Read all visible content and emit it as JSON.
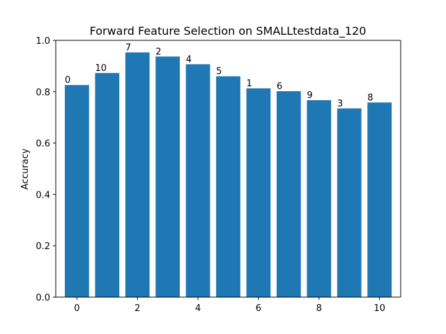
{
  "chart_data": {
    "type": "bar",
    "title": "Forward Feature Selection on SMALLtestdata_120",
    "xlabel": "",
    "ylabel": "Accuracy",
    "x": [
      0,
      1,
      2,
      3,
      4,
      5,
      6,
      7,
      8,
      9,
      10
    ],
    "values": [
      0.826,
      0.873,
      0.953,
      0.937,
      0.907,
      0.86,
      0.813,
      0.802,
      0.767,
      0.735,
      0.758
    ],
    "bar_labels": [
      "0",
      "10",
      "7",
      "2",
      "4",
      "5",
      "1",
      "6",
      "9",
      "3",
      "8"
    ],
    "xlim": [
      -0.7,
      10.7
    ],
    "ylim": [
      0,
      1.0
    ],
    "xticks": [
      0,
      2,
      4,
      6,
      8,
      10
    ],
    "yticks": [
      0.0,
      0.2,
      0.4,
      0.6,
      0.8,
      1.0
    ],
    "ytick_labels": [
      "0.0",
      "0.2",
      "0.4",
      "0.6",
      "0.8",
      "1.0"
    ],
    "bar_color": "#1f77b4",
    "grid": false,
    "legend": "none"
  }
}
